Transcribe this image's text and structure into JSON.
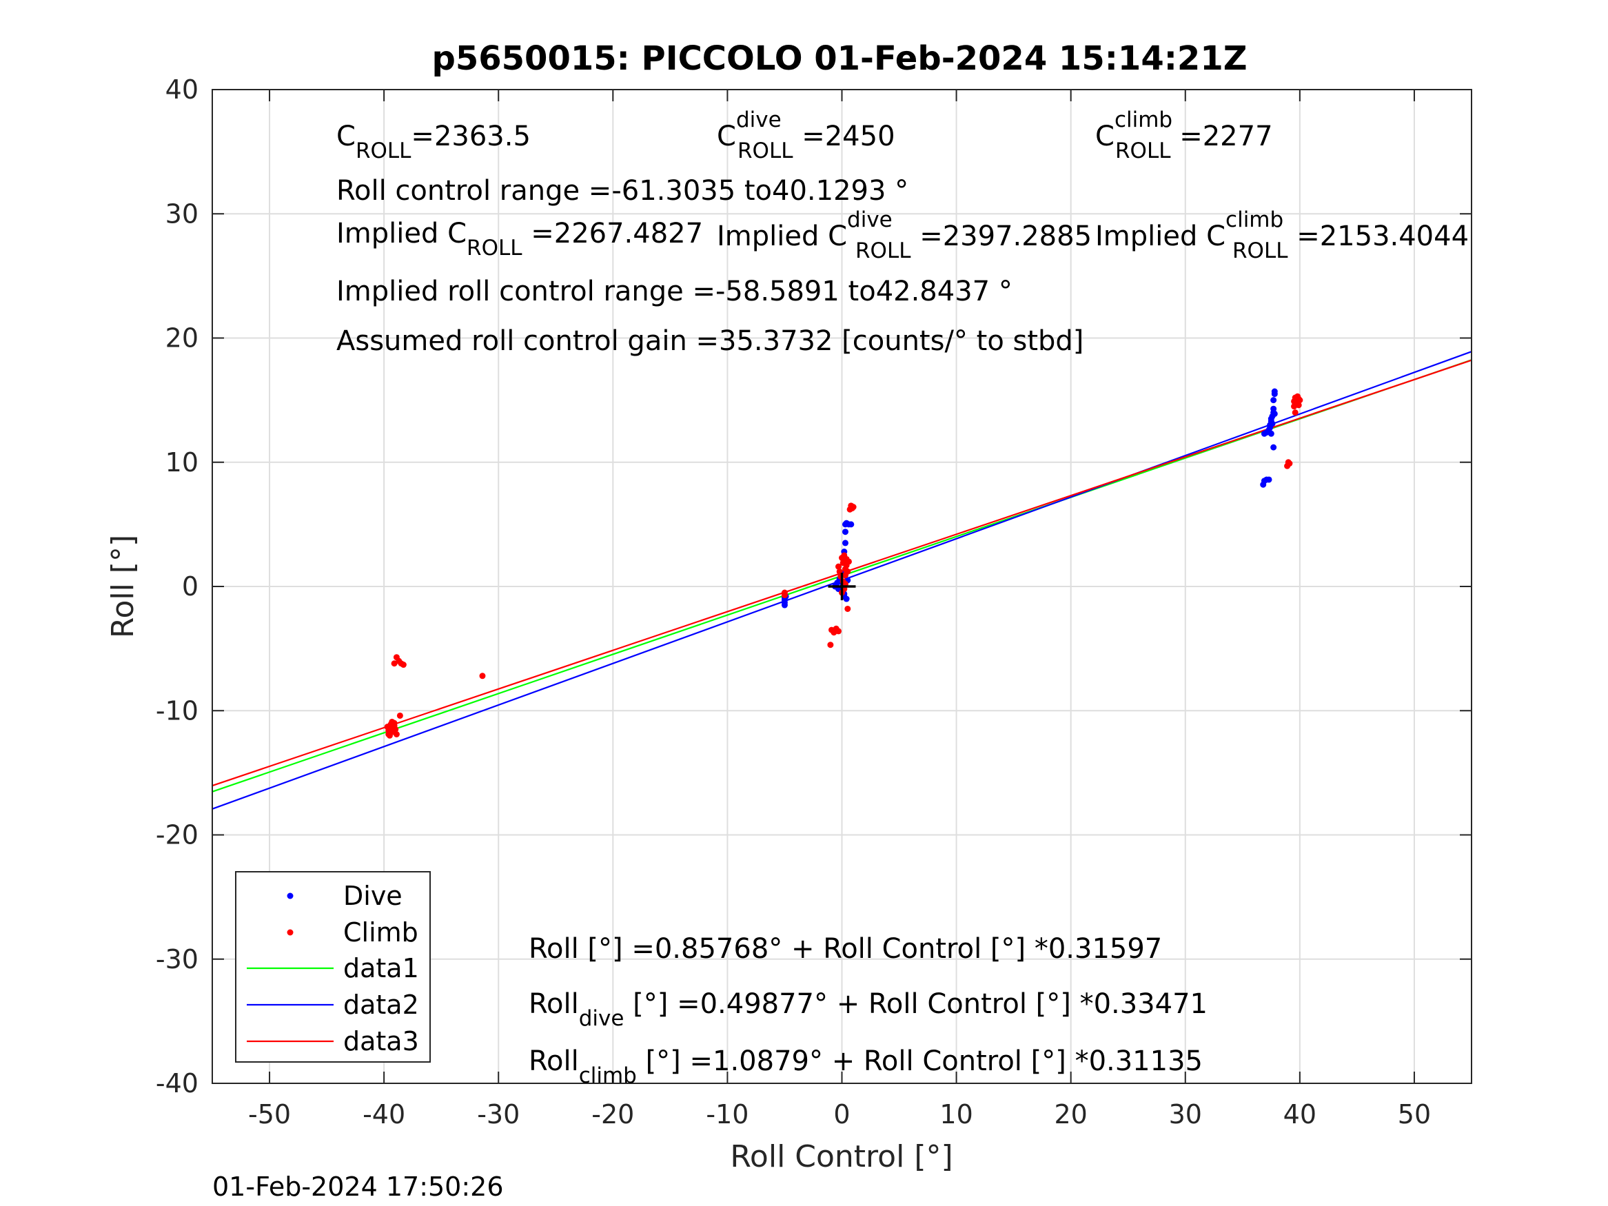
{
  "chart_data": {
    "type": "scatter",
    "title": "p5650015: PICCOLO 01-Feb-2024 15:14:21Z",
    "xlabel": "Roll Control [°]",
    "ylabel": "Roll [°]",
    "xlim": [
      -55,
      55
    ],
    "ylim": [
      -40,
      40
    ],
    "xticks": [
      -50,
      -40,
      -30,
      -20,
      -10,
      0,
      10,
      20,
      30,
      40,
      50
    ],
    "yticks": [
      -40,
      -30,
      -20,
      -10,
      0,
      10,
      20,
      30,
      40
    ],
    "x_tick_labels": [
      "-50",
      "-40",
      "-30",
      "-20",
      "-10",
      "0",
      "10",
      "20",
      "30",
      "40",
      "50"
    ],
    "y_tick_labels": [
      "-40",
      "-30",
      "-20",
      "-10",
      "0",
      "10",
      "20",
      "30",
      "40"
    ],
    "grid": true,
    "legend_position": "bottom-left",
    "timestamp": "01-Feb-2024 17:50:26",
    "series": [
      {
        "name": "Dive",
        "kind": "points",
        "color": "#0000ff",
        "points": [
          [
            -5.0,
            -0.9
          ],
          [
            -5.0,
            -1.1
          ],
          [
            -5.0,
            -1.3
          ],
          [
            -5.0,
            -1.5
          ],
          [
            -4.9,
            -0.8
          ],
          [
            -0.6,
            0.0
          ],
          [
            -0.4,
            0.3
          ],
          [
            -0.3,
            -0.2
          ],
          [
            -0.2,
            0.6
          ],
          [
            -0.1,
            1.1
          ],
          [
            0.0,
            -0.1
          ],
          [
            0.1,
            0.2
          ],
          [
            0.1,
            -0.4
          ],
          [
            0.2,
            -0.8
          ],
          [
            0.2,
            -0.6
          ],
          [
            0.2,
            2.8
          ],
          [
            0.3,
            3.5
          ],
          [
            0.3,
            4.4
          ],
          [
            0.3,
            5.0
          ],
          [
            0.4,
            5.1
          ],
          [
            0.4,
            -1.0
          ],
          [
            0.5,
            0.5
          ],
          [
            0.6,
            5.0
          ],
          [
            0.8,
            5.0
          ],
          [
            36.8,
            8.2
          ],
          [
            36.9,
            8.5
          ],
          [
            37.1,
            8.6
          ],
          [
            37.3,
            8.6
          ],
          [
            36.9,
            12.3
          ],
          [
            37.1,
            12.4
          ],
          [
            37.3,
            12.6
          ],
          [
            37.4,
            12.8
          ],
          [
            37.4,
            13.0
          ],
          [
            37.5,
            13.3
          ],
          [
            37.5,
            13.5
          ],
          [
            37.6,
            13.1
          ],
          [
            37.6,
            13.7
          ],
          [
            37.7,
            14.0
          ],
          [
            37.7,
            14.3
          ],
          [
            37.7,
            15.0
          ],
          [
            37.8,
            15.5
          ],
          [
            37.8,
            15.7
          ],
          [
            37.7,
            11.2
          ],
          [
            37.5,
            12.3
          ],
          [
            37.8,
            13.9
          ]
        ]
      },
      {
        "name": "Climb",
        "kind": "points",
        "color": "#ff0000",
        "points": [
          [
            -39.7,
            -11.3
          ],
          [
            -39.6,
            -11.6
          ],
          [
            -39.6,
            -11.9
          ],
          [
            -39.5,
            -12.0
          ],
          [
            -39.5,
            -11.8
          ],
          [
            -39.4,
            -11.1
          ],
          [
            -39.3,
            -11.4
          ],
          [
            -39.2,
            -11.7
          ],
          [
            -39.1,
            -11.2
          ],
          [
            -39.0,
            -11.5
          ],
          [
            -39.3,
            -10.9
          ],
          [
            -39.1,
            -11.0
          ],
          [
            -38.9,
            -11.9
          ],
          [
            -39.1,
            -6.2
          ],
          [
            -38.9,
            -5.7
          ],
          [
            -38.7,
            -6.0
          ],
          [
            -38.5,
            -6.2
          ],
          [
            -38.3,
            -6.3
          ],
          [
            -38.6,
            -10.4
          ],
          [
            -31.4,
            -7.2
          ],
          [
            -5.0,
            -0.5
          ],
          [
            -5.0,
            -0.7
          ],
          [
            -1.0,
            -4.7
          ],
          [
            -0.9,
            -3.5
          ],
          [
            -0.7,
            -3.7
          ],
          [
            -0.5,
            -3.4
          ],
          [
            -0.3,
            -3.6
          ],
          [
            -0.3,
            1.6
          ],
          [
            -0.2,
            1.2
          ],
          [
            -0.1,
            0.8
          ],
          [
            0.0,
            2.3
          ],
          [
            0.0,
            -0.5
          ],
          [
            0.1,
            0.4
          ],
          [
            0.1,
            1.9
          ],
          [
            0.2,
            2.5
          ],
          [
            0.2,
            -0.2
          ],
          [
            0.3,
            1.4
          ],
          [
            0.3,
            0.9
          ],
          [
            0.4,
            2.2
          ],
          [
            0.4,
            1.7
          ],
          [
            0.5,
            -1.8
          ],
          [
            0.5,
            1.2
          ],
          [
            0.6,
            2.0
          ],
          [
            0.3,
            0.2
          ],
          [
            0.7,
            6.2
          ],
          [
            0.8,
            6.5
          ],
          [
            0.9,
            6.3
          ],
          [
            1.0,
            6.4
          ],
          [
            38.9,
            9.7
          ],
          [
            39.0,
            10.0
          ],
          [
            39.1,
            9.9
          ],
          [
            39.5,
            14.5
          ],
          [
            39.5,
            14.9
          ],
          [
            39.6,
            15.2
          ],
          [
            39.6,
            14.0
          ],
          [
            39.7,
            14.7
          ],
          [
            39.7,
            15.0
          ],
          [
            39.8,
            14.8
          ],
          [
            39.8,
            15.3
          ],
          [
            39.9,
            15.1
          ],
          [
            39.9,
            14.6
          ],
          [
            40.0,
            15.0
          ]
        ]
      },
      {
        "name": "data1",
        "kind": "line",
        "color": "#00ff00",
        "intercept": 0.85768,
        "slope": 0.31597,
        "x": [
          -55,
          55
        ]
      },
      {
        "name": "data2",
        "kind": "line",
        "color": "#0000ff",
        "intercept": 0.49877,
        "slope": 0.33471,
        "x": [
          -55,
          55
        ]
      },
      {
        "name": "data3",
        "kind": "line",
        "color": "#ff0000",
        "intercept": 1.0879,
        "slope": 0.31135,
        "x": [
          -55,
          55
        ]
      }
    ],
    "center_marker": {
      "x": 0,
      "y": 0
    },
    "annotations": {
      "c_roll": {
        "main": "C",
        "sub": "ROLL",
        "tail": "=2363.5"
      },
      "c_roll_dive": {
        "main": "C",
        "sup": "dive",
        "sub": "ROLL",
        "tail": " =2450"
      },
      "c_roll_climb": {
        "main": "C",
        "sup": "climb",
        "sub": "ROLL",
        "tail": " =2277"
      },
      "range": "Roll control range =-61.3035 to40.1293 °",
      "implied_c_roll": {
        "main": "Implied C",
        "sub": "ROLL",
        "tail": " =2267.4827"
      },
      "implied_c_roll_dive": {
        "main": "Implied C",
        "sup": "dive",
        "sub": "ROLL",
        "tail": " =2397.2885"
      },
      "implied_c_roll_climb": {
        "main": "Implied C",
        "sup": "climb",
        "sub": "ROLL",
        "tail": " =2153.4044"
      },
      "implied_range": "Implied roll control range =-58.5891 to42.8437 °",
      "gain": "Assumed roll control gain =35.3732 [counts/° to stbd]",
      "fit_all": "Roll [°] =0.85768° + Roll Control [°] *0.31597",
      "fit_dive": {
        "main": "Roll",
        "sub": "dive",
        "tail": " [°] =0.49877° + Roll Control [°] *0.33471"
      },
      "fit_climb": {
        "main": "Roll",
        "sub": "climb",
        "tail": " [°] =1.0879° + Roll Control [°] *0.31135"
      }
    }
  }
}
